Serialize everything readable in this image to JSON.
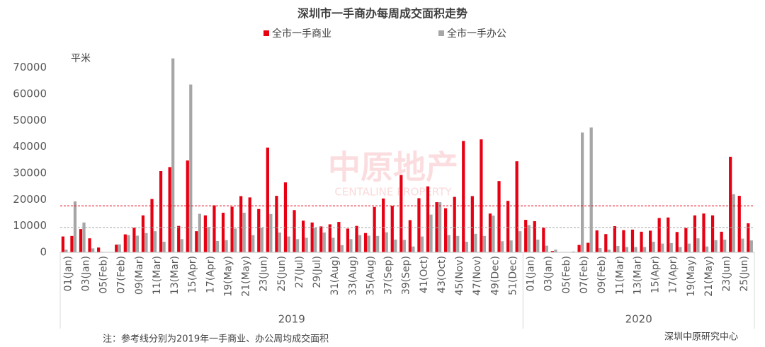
{
  "chart_data": {
    "type": "bar",
    "title": "深圳市一手商办每周成交面积走势",
    "y_label": "平米",
    "categories": [
      "01(Jan)",
      null,
      "03(Jan)",
      null,
      "05(Feb)",
      null,
      "07(Feb)",
      null,
      "09(Mar)",
      null,
      "11(Mar)",
      null,
      "13(Mar)",
      null,
      "15(Apr)",
      null,
      "17(Apr)",
      null,
      "19(May)",
      null,
      "21(May)",
      null,
      "23(Jun)",
      null,
      "25(Jun)",
      null,
      "27(Jul)",
      null,
      "29(Jul)",
      null,
      "31(Aug)",
      null,
      "33(Aug)",
      null,
      "35(Aug)",
      null,
      "37(Sep)",
      null,
      "39(Sep)",
      null,
      "41(Oct)",
      null,
      "43(Oct)",
      null,
      "45(Nov)",
      null,
      "47(Nov)",
      null,
      "49(Dec)",
      null,
      "51(Dec)",
      null,
      "01(Jan)",
      null,
      "03(Jan)",
      null,
      "05(Feb)",
      null,
      "07(Feb)",
      null,
      "09(Feb)",
      null,
      "11(Mar)",
      null,
      "13(Mar)",
      null,
      "15(Apr)",
      null,
      "17(Apr)",
      null,
      "19(May)",
      null,
      "21(May)",
      null,
      "23(Jun)",
      null,
      "25(Jun)",
      null
    ],
    "x_groups": [
      "2019",
      "2020"
    ],
    "series": [
      {
        "name": "全市一手商业",
        "color": "#e60012",
        "values": [
          6000,
          6200,
          8800,
          5300,
          1800,
          0,
          2900,
          6800,
          9300,
          14000,
          20200,
          30800,
          32300,
          10000,
          34800,
          8000,
          14000,
          17800,
          15000,
          17300,
          21300,
          20800,
          16400,
          39700,
          21400,
          26500,
          16000,
          12000,
          11300,
          9800,
          10600,
          11500,
          9000,
          10000,
          7300,
          17200,
          20400,
          17600,
          29300,
          12200,
          20500,
          25000,
          19000,
          16700,
          21000,
          42200,
          21300,
          42800,
          14700,
          27000,
          19500,
          34500,
          12300,
          11800,
          9300,
          500,
          0,
          0,
          2800,
          3600,
          8300,
          6900,
          9900,
          8400,
          8600,
          7800,
          8200,
          13000,
          13200,
          7700,
          9200,
          14000,
          14700,
          14000,
          7800,
          36200,
          21400,
          11000
        ]
      },
      {
        "name": "全市一手办公",
        "color": "#a6a6a6",
        "values": [
          1000,
          19300,
          11300,
          1500,
          200,
          0,
          3000,
          6500,
          6300,
          7300,
          8000,
          4000,
          73500,
          5000,
          63600,
          14600,
          9600,
          4300,
          4600,
          9000,
          15000,
          6500,
          9300,
          14500,
          7500,
          6000,
          5000,
          5500,
          9300,
          7500,
          5500,
          2700,
          5000,
          6500,
          6300,
          6200,
          7600,
          4800,
          4700,
          2200,
          6000,
          14300,
          19000,
          6500,
          6200,
          4000,
          7000,
          6200,
          13900,
          4200,
          4500,
          8000,
          10300,
          4800,
          2500,
          1000,
          0,
          300,
          45400,
          47300,
          1600,
          1000,
          2400,
          2000,
          2000,
          2000,
          4000,
          3300,
          3500,
          2000,
          3300,
          5300,
          2200,
          4600,
          4800,
          22000,
          5200,
          4500
        ]
      }
    ],
    "reference_lines": [
      {
        "value": 17600,
        "color": "#e60012"
      },
      {
        "value": 9400,
        "color": "#a6a6a6"
      }
    ],
    "ylim": [
      0,
      75000
    ],
    "yticks": [
      0,
      10000,
      20000,
      30000,
      40000,
      50000,
      60000,
      70000
    ],
    "grid": false,
    "note": "注：参考线分别为2019年一手商业、办公周均成交面积",
    "source": "深圳中原研究中心",
    "watermark": {
      "text": "中原地产",
      "subtext": "CENTALINE PROPERTY"
    }
  }
}
